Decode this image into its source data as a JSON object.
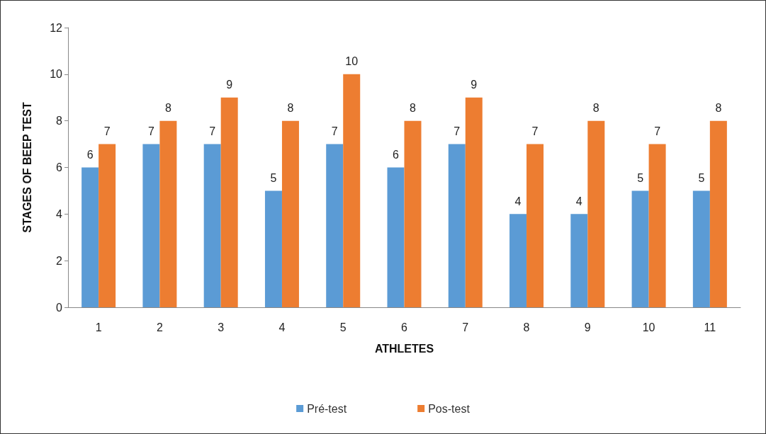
{
  "chart_data": {
    "type": "bar",
    "xlabel": "ATHLETES",
    "ylabel": "STAGES OF BEEP TEST",
    "categories": [
      "1",
      "2",
      "3",
      "4",
      "5",
      "6",
      "7",
      "8",
      "9",
      "10",
      "11"
    ],
    "series": [
      {
        "name": "Pré-test",
        "color": "#5b9bd5",
        "values": [
          6,
          7,
          7,
          5,
          7,
          6,
          7,
          4,
          4,
          5,
          5
        ]
      },
      {
        "name": "Pos-test",
        "color": "#ed7d31",
        "values": [
          7,
          8,
          9,
          8,
          10,
          8,
          9,
          7,
          8,
          7,
          8
        ]
      }
    ],
    "ylim": [
      0,
      12
    ],
    "yticks": [
      0,
      2,
      4,
      6,
      8,
      10,
      12
    ],
    "grid": false,
    "legend": "bottom",
    "data_labels": true
  }
}
